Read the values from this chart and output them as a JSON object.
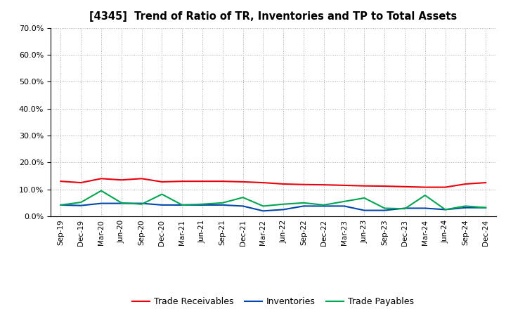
{
  "title": "[4345]  Trend of Ratio of TR, Inventories and TP to Total Assets",
  "labels": [
    "Sep-19",
    "Dec-19",
    "Mar-20",
    "Jun-20",
    "Sep-20",
    "Dec-20",
    "Mar-21",
    "Jun-21",
    "Sep-21",
    "Dec-21",
    "Mar-22",
    "Jun-22",
    "Sep-22",
    "Dec-22",
    "Mar-23",
    "Jun-23",
    "Sep-23",
    "Dec-23",
    "Mar-24",
    "Jun-24",
    "Sep-24",
    "Dec-24"
  ],
  "trade_receivables": [
    0.13,
    0.125,
    0.14,
    0.135,
    0.14,
    0.128,
    0.13,
    0.13,
    0.13,
    0.128,
    0.125,
    0.12,
    0.118,
    0.117,
    0.115,
    0.113,
    0.112,
    0.11,
    0.108,
    0.108,
    0.12,
    0.125
  ],
  "inventories": [
    0.042,
    0.04,
    0.048,
    0.048,
    0.048,
    0.042,
    0.042,
    0.042,
    0.042,
    0.038,
    0.02,
    0.025,
    0.038,
    0.038,
    0.038,
    0.022,
    0.022,
    0.03,
    0.03,
    0.025,
    0.032,
    0.032
  ],
  "trade_payables": [
    0.042,
    0.052,
    0.095,
    0.05,
    0.045,
    0.082,
    0.042,
    0.045,
    0.05,
    0.07,
    0.038,
    0.045,
    0.05,
    0.042,
    0.055,
    0.068,
    0.03,
    0.028,
    0.078,
    0.025,
    0.038,
    0.032
  ],
  "tr_color": "#e8000d",
  "inv_color": "#0047ab",
  "tp_color": "#00a550",
  "bg_color": "#ffffff",
  "grid_color": "#aaaaaa",
  "ylim": [
    0.0,
    0.7
  ],
  "yticks": [
    0.0,
    0.1,
    0.2,
    0.3,
    0.4,
    0.5,
    0.6,
    0.7
  ],
  "legend_labels": [
    "Trade Receivables",
    "Inventories",
    "Trade Payables"
  ]
}
